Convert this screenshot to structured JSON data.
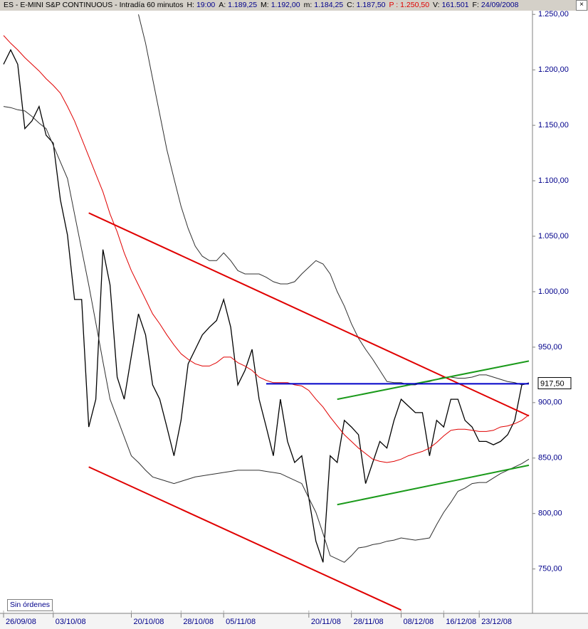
{
  "chart_data": {
    "type": "line",
    "header": [
      {
        "label": "ES - E-MINI S&P CONTINUOUS - Intradía 60 minutos"
      },
      {
        "label": "H:",
        "value": "19:00"
      },
      {
        "label": "A:",
        "value": "1.189,25"
      },
      {
        "label": "M:",
        "value": "1.192,00"
      },
      {
        "label": "m:",
        "value": "1.184,25"
      },
      {
        "label": "C:",
        "value": "1.187,50"
      },
      {
        "label": "P :",
        "value": "1.250,50",
        "color": "#e00000"
      },
      {
        "label": "V:",
        "value": "161.501"
      },
      {
        "label": "F:",
        "value": "24/09/2008"
      }
    ],
    "categories": [
      "26/09/08",
      null,
      null,
      null,
      null,
      null,
      null,
      "03/10/08",
      null,
      null,
      null,
      null,
      null,
      null,
      null,
      null,
      null,
      null,
      "20/10/08",
      null,
      null,
      null,
      null,
      null,
      null,
      "28/10/08",
      null,
      null,
      null,
      null,
      null,
      "05/11/08",
      null,
      null,
      null,
      null,
      null,
      null,
      null,
      null,
      null,
      null,
      null,
      "20/11/08",
      null,
      null,
      null,
      null,
      null,
      "28/11/08",
      null,
      null,
      null,
      null,
      null,
      null,
      "08/12/08",
      null,
      null,
      null,
      null,
      null,
      "16/12/08",
      null,
      null,
      null,
      null,
      "23/12/08",
      null,
      null,
      null,
      null,
      null,
      null,
      null
    ],
    "series": [
      {
        "color": "#000000",
        "values": [
          1205,
          1218,
          1205,
          1147,
          1154,
          1167,
          1141,
          1134,
          1083,
          1051,
          993,
          993,
          878,
          903,
          1038,
          1006,
          923,
          903,
          942,
          980,
          961,
          916,
          903,
          878,
          852,
          884,
          935,
          948,
          961,
          968,
          974,
          993,
          968,
          916,
          929,
          948,
          903,
          878,
          852,
          903,
          865,
          846,
          852,
          814,
          775,
          756,
          852,
          846,
          884,
          878,
          871,
          827,
          846,
          865,
          859,
          884,
          903,
          897,
          891,
          891,
          852,
          884,
          878,
          903,
          903,
          884,
          878,
          865,
          865,
          862,
          865,
          871,
          884,
          916,
          917.5
        ]
      },
      {
        "color": "#e00000",
        "values": [
          1231,
          1224,
          1218,
          1211,
          1205,
          1199,
          1192,
          1186,
          1179,
          1167,
          1154,
          1138,
          1122,
          1106,
          1090,
          1070,
          1054,
          1035,
          1019,
          1006,
          993,
          980,
          971,
          961,
          952,
          944,
          939,
          935,
          933,
          933,
          936,
          941,
          941,
          936,
          933,
          929,
          923,
          920,
          918,
          918,
          918,
          916,
          915,
          911,
          903,
          896,
          887,
          879,
          871,
          865,
          859,
          854,
          849,
          847,
          846,
          847,
          849,
          852,
          854,
          856,
          859,
          864,
          870,
          875,
          876,
          876,
          875,
          874,
          874,
          875,
          878,
          879,
          881,
          884,
          889
        ]
      },
      {
        "color": "#303030",
        "values": [
          null,
          null,
          null,
          null,
          null,
          null,
          null,
          null,
          null,
          null,
          null,
          null,
          null,
          null,
          null,
          null,
          null,
          null,
          null,
          1250,
          1224,
          1192,
          1160,
          1128,
          1102,
          1077,
          1057,
          1041,
          1032,
          1028,
          1028,
          1035,
          1028,
          1019,
          1016,
          1016,
          1016,
          1013,
          1009,
          1007,
          1007,
          1009,
          1016,
          1022,
          1028,
          1025,
          1016,
          1000,
          987,
          971,
          958,
          948,
          939,
          929,
          919,
          918,
          918,
          916,
          916,
          918,
          919,
          921,
          923,
          923,
          922,
          922,
          923,
          925,
          925,
          923,
          921,
          919,
          918,
          916,
          918
        ]
      },
      {
        "color": "#303030",
        "values": [
          1167,
          1166,
          1164,
          1163,
          1158,
          1152,
          1147,
          1132,
          1117,
          1102,
          1070,
          1038,
          1006,
          972,
          937,
          903,
          886,
          869,
          852,
          846,
          839,
          833,
          831,
          829,
          827,
          829,
          831,
          833,
          834,
          835,
          836,
          837,
          838,
          839,
          839,
          839,
          839,
          838,
          837,
          836,
          833,
          830,
          827,
          814,
          801,
          782,
          762,
          759,
          756,
          762,
          769,
          770,
          772,
          773,
          775,
          776,
          778,
          777,
          776,
          777,
          778,
          790,
          801,
          810,
          820,
          823,
          827,
          828,
          828,
          832,
          836,
          839,
          842,
          845,
          849
        ]
      }
    ],
    "lines": [
      {
        "color": "#e00000",
        "x": [
          12,
          74
        ],
        "y": [
          1071,
          888
        ]
      },
      {
        "color": "#e00000",
        "x": [
          12,
          56
        ],
        "y": [
          842,
          713
        ]
      },
      {
        "color": "#1a9a1a",
        "x": [
          47,
          74
        ],
        "y": [
          903,
          937.5
        ]
      },
      {
        "color": "#1a9a1a",
        "x": [
          47,
          74
        ],
        "y": [
          808,
          843.5
        ]
      },
      {
        "color": "#0000c8",
        "x": [
          37,
          74
        ],
        "y": [
          917,
          917
        ]
      }
    ],
    "last_price": {
      "value": 917.5,
      "label": "917,50"
    },
    "ylim": [
      710,
      1254
    ],
    "yticks": [
      {
        "value": 750,
        "label": "750,00"
      },
      {
        "value": 800,
        "label": "800,00"
      },
      {
        "value": 850,
        "label": "850,00"
      },
      {
        "value": 900,
        "label": "900,00"
      },
      {
        "value": 950,
        "label": "950,00"
      },
      {
        "value": 1000,
        "label": "1.000,00"
      },
      {
        "value": 1050,
        "label": "1.050,00"
      },
      {
        "value": 1100,
        "label": "1.100,00"
      },
      {
        "value": 1150,
        "label": "1.150,00"
      },
      {
        "value": 1200,
        "label": "1.200,00"
      },
      {
        "value": 1250,
        "label": "1.250,00"
      }
    ]
  },
  "ui": {
    "button": "Sin órdenes"
  }
}
